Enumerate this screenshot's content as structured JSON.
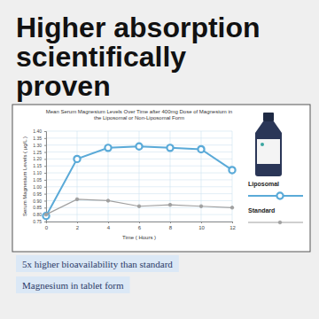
{
  "headline": "Higher absorption scientifically proven",
  "captions": [
    "5x higher bioavailability than standard",
    "Magnesium in tablet form"
  ],
  "chart_data": {
    "type": "line",
    "title": "Mean Serum Magnesium Levels Over Time after 400mg Dose of Magnesium in the Liposomal or Non-Liposomal Form",
    "x_label": "Time ( Hours )",
    "y_label": "Serum Magnesium Levels ( µg/L )",
    "x": [
      0,
      2,
      4,
      6,
      8,
      10,
      12
    ],
    "series": [
      {
        "name": "Liposomal",
        "color": "#5aaad8",
        "marker": "circle",
        "line_style": "solid",
        "values": [
          0.79,
          1.2,
          1.28,
          1.29,
          1.28,
          1.27,
          1.12
        ]
      },
      {
        "name": "Standard",
        "color": "#a0a0a0",
        "marker": "circle",
        "line_style": "solid",
        "values": [
          0.8,
          0.91,
          0.9,
          0.86,
          0.87,
          0.86,
          0.85
        ]
      }
    ],
    "xlim": [
      0,
      12
    ],
    "xticks": [
      0,
      2,
      4,
      6,
      8,
      10,
      12
    ],
    "ylim": [
      0.75,
      1.4
    ],
    "yticks": [
      0.75,
      {
        "value": 0.8,
        "label": "0.80"
      },
      0.85,
      {
        "value": 0.9,
        "label": "0.90"
      },
      0.95,
      {
        "value": 1,
        "label": "1.00"
      },
      1.05,
      {
        "value": 1.1,
        "label": "1.10"
      },
      1.15,
      {
        "value": 1.2,
        "label": "1.20"
      },
      1.25,
      {
        "value": 1.3,
        "label": "1.30"
      },
      1.35,
      {
        "value": 1.4,
        "label": "1.40"
      }
    ],
    "grid": true,
    "legend": "right"
  }
}
